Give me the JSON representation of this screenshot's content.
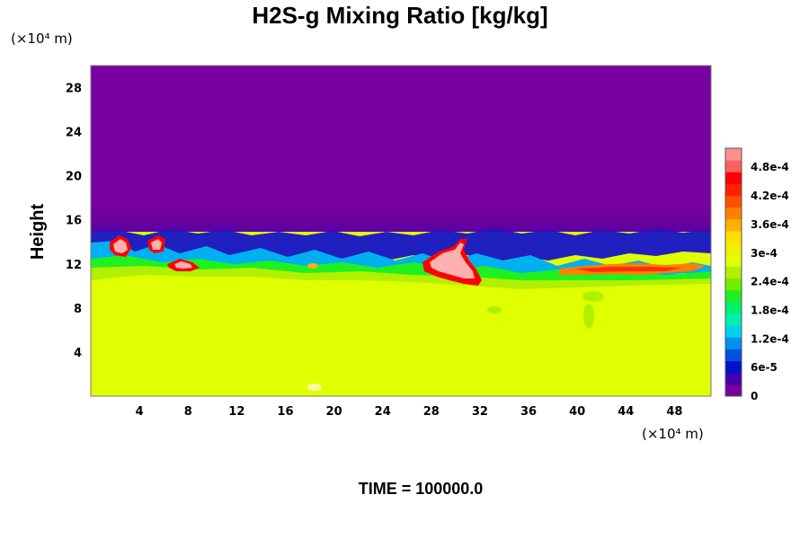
{
  "chart_data": {
    "type": "heatmap",
    "title": "H2S-g Mixing Ratio [kg/kg]",
    "xlabel": "",
    "ylabel": "Height",
    "x_unit": "(×10⁴ m)",
    "y_unit": "(×10⁴ m)",
    "xlim": [
      0,
      51
    ],
    "ylim": [
      0,
      30
    ],
    "x_ticks": [
      "4",
      "8",
      "12",
      "16",
      "20",
      "24",
      "28",
      "32",
      "36",
      "40",
      "44",
      "48"
    ],
    "y_ticks": [
      "4",
      "8",
      "12",
      "16",
      "20",
      "24",
      "28"
    ],
    "colorbar": {
      "min": 0,
      "max": 0.00052,
      "ticks": [
        "0",
        "6e-5",
        "1.2e-4",
        "1.8e-4",
        "2.4e-4",
        "3e-4",
        "3.6e-4",
        "4.2e-4",
        "4.8e-4"
      ],
      "colors": [
        "#7800a0",
        "#4000b0",
        "#0010c8",
        "#0050e0",
        "#0090f0",
        "#00d0f0",
        "#00f0b0",
        "#00f070",
        "#20f020",
        "#70f000",
        "#b0f000",
        "#e0ff00",
        "#f0f000",
        "#ffe000",
        "#ffb000",
        "#ff8000",
        "#ff5000",
        "#ff2000",
        "#ff0000",
        "#ff6060",
        "#ff9090"
      ]
    },
    "regions": [
      {
        "name": "upper",
        "y_range": [
          15.2,
          30
        ],
        "value": 0.0
      },
      {
        "name": "lower",
        "y_range": [
          0,
          10.5
        ],
        "value": 0.00034
      },
      {
        "name": "mixing-layer",
        "y_range": [
          10.5,
          15.2
        ],
        "value_range": [
          0,
          0.00052
        ]
      }
    ],
    "time_label": "TIME = 100000.0"
  }
}
